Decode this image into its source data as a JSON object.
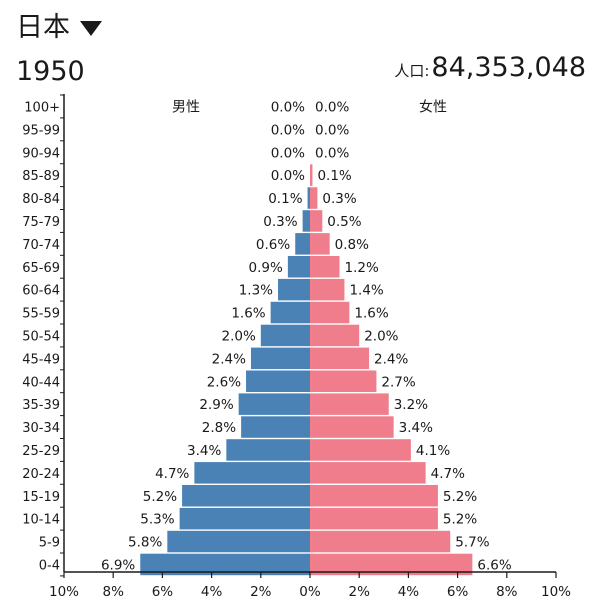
{
  "header": {
    "country": "日本",
    "year": "1950",
    "population_label": "人口:",
    "population_value": "84,353,048"
  },
  "icons": {
    "country_dropdown": "caret-down-icon"
  },
  "colors": {
    "male": "#4a82b6",
    "female": "#ef7d8b",
    "axis": "#1a1a1a",
    "text": "#1a1a1a"
  },
  "chart_data": {
    "type": "bar",
    "orientation": "horizontal",
    "subtype": "population-pyramid",
    "categories": [
      "100+",
      "95-99",
      "90-94",
      "85-89",
      "80-84",
      "75-79",
      "70-74",
      "65-69",
      "60-64",
      "55-59",
      "50-54",
      "45-49",
      "40-44",
      "35-39",
      "30-34",
      "25-29",
      "20-24",
      "15-19",
      "10-14",
      "5-9",
      "0-4"
    ],
    "series": [
      {
        "name": "男性",
        "values": [
          0.0,
          0.0,
          0.0,
          0.0,
          0.1,
          0.3,
          0.6,
          0.9,
          1.3,
          1.6,
          2.0,
          2.4,
          2.6,
          2.9,
          2.8,
          3.4,
          4.7,
          5.2,
          5.3,
          5.8,
          6.9
        ],
        "labels": [
          "0.0%",
          "0.0%",
          "0.0%",
          "0.0%",
          "0.1%",
          "0.3%",
          "0.6%",
          "0.9%",
          "1.3%",
          "1.6%",
          "2.0%",
          "2.4%",
          "2.6%",
          "2.9%",
          "2.8%",
          "3.4%",
          "4.7%",
          "5.2%",
          "5.3%",
          "5.8%",
          "6.9%"
        ],
        "color": "#4a82b6"
      },
      {
        "name": "女性",
        "values": [
          0.0,
          0.0,
          0.0,
          0.1,
          0.3,
          0.5,
          0.8,
          1.2,
          1.4,
          1.6,
          2.0,
          2.4,
          2.7,
          3.2,
          3.4,
          4.1,
          4.7,
          5.2,
          5.2,
          5.7,
          6.6
        ],
        "labels": [
          "0.0%",
          "0.0%",
          "0.0%",
          "0.1%",
          "0.3%",
          "0.5%",
          "0.8%",
          "1.2%",
          "1.4%",
          "1.6%",
          "2.0%",
          "2.4%",
          "2.7%",
          "3.2%",
          "3.4%",
          "4.1%",
          "4.7%",
          "5.2%",
          "5.2%",
          "5.7%",
          "6.6%"
        ],
        "color": "#ef7d8b"
      }
    ],
    "xlim": [
      -10,
      10
    ],
    "xticks": [
      "10%",
      "8%",
      "6%",
      "4%",
      "2%",
      "0%",
      "2%",
      "4%",
      "6%",
      "8%",
      "10%"
    ],
    "grid": false
  }
}
